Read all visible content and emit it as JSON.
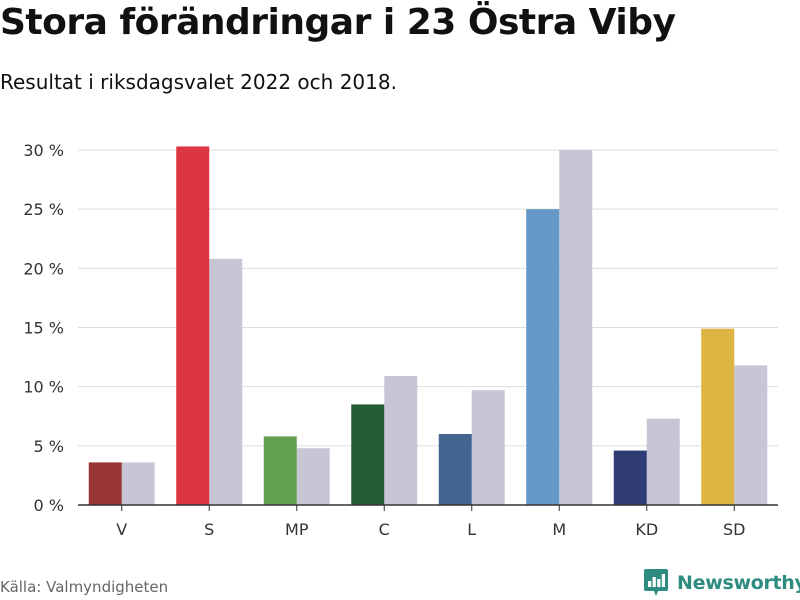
{
  "header": {
    "title": "Stora förändringar i 23 Östra Viby",
    "subtitle": "Resultat i riksdagsvalet 2022 och 2018."
  },
  "footer": {
    "source": "Källa: Valmyndigheten",
    "brand": "Newsworthy",
    "brand_icon": "bar-chart-logo-icon"
  },
  "colors": {
    "grid": "#dddddd",
    "axis": "#333333",
    "tick_text": "#333333",
    "series_2018": "#c8c6d4",
    "brand": "#2e8b7f"
  },
  "chart_data": {
    "type": "bar",
    "title": "Stora förändringar i 23 Östra Viby",
    "subtitle": "Resultat i riksdagsvalet 2022 och 2018.",
    "xlabel": "",
    "ylabel": "",
    "ylim": [
      0,
      30
    ],
    "yticks": [
      0,
      5,
      10,
      15,
      20,
      25,
      30
    ],
    "ytick_labels": [
      "0 %",
      "5 %",
      "10 %",
      "15 %",
      "20 %",
      "25 %",
      "30 %"
    ],
    "grid": true,
    "categories": [
      "V",
      "S",
      "MP",
      "C",
      "L",
      "M",
      "KD",
      "SD"
    ],
    "series": [
      {
        "name": "2022",
        "values": [
          3.6,
          30.3,
          5.8,
          8.5,
          6.0,
          25.0,
          4.6,
          14.9
        ],
        "colors": [
          "#983535",
          "#dc3640",
          "#63a050",
          "#245e35",
          "#426690",
          "#6598c8",
          "#2f3b75",
          "#ddb342"
        ]
      },
      {
        "name": "2018",
        "values": [
          3.6,
          20.8,
          4.8,
          10.9,
          9.7,
          30.0,
          7.3,
          11.8
        ],
        "color": "#c8c6d4"
      }
    ]
  }
}
